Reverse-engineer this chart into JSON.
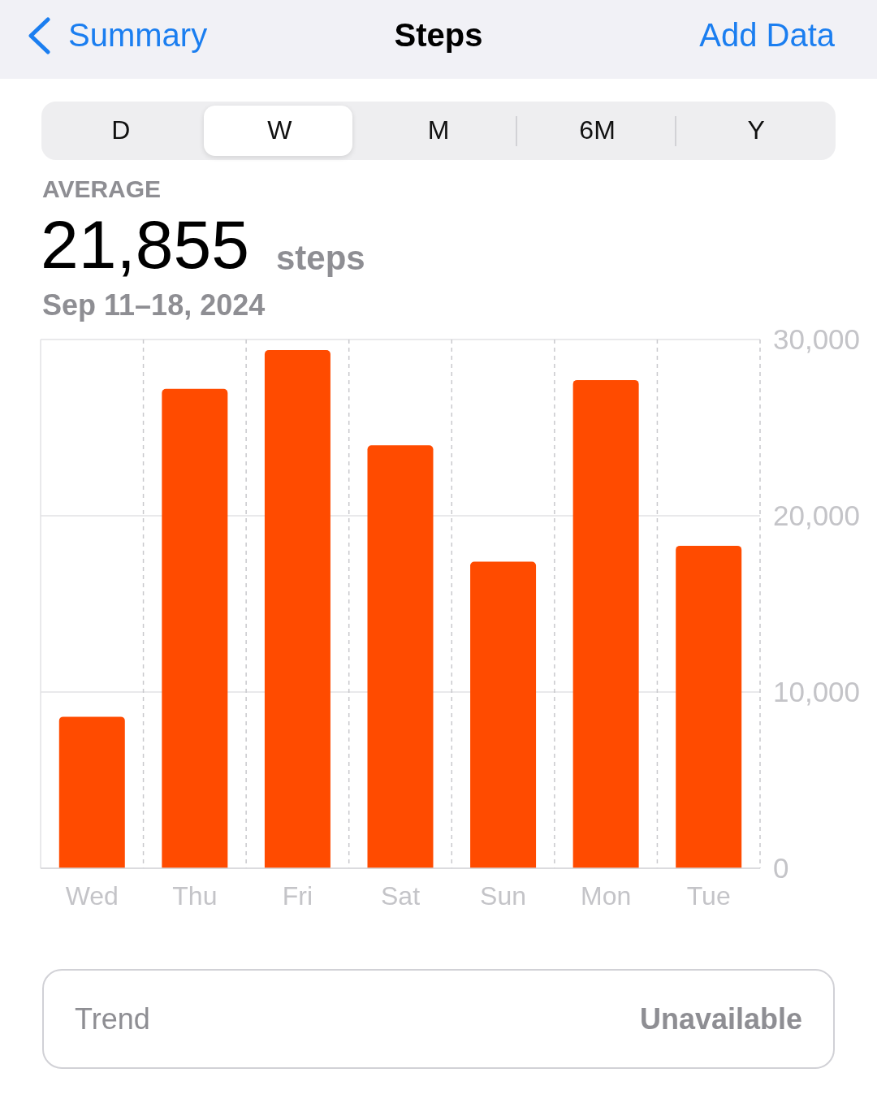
{
  "chart_data": {
    "type": "bar",
    "title": "Steps",
    "subtitle": "Sep 11–18, 2024",
    "categories": [
      "Wed",
      "Thu",
      "Fri",
      "Sat",
      "Sun",
      "Mon",
      "Tue"
    ],
    "values": [
      8600,
      27200,
      29400,
      24000,
      17400,
      27700,
      18300
    ],
    "color": "#ff4b00",
    "ylim": [
      0,
      30000
    ],
    "yticks": [
      0,
      {
        "value": 10000,
        "label": "10,000"
      },
      {
        "value": 20000,
        "label": "20,000"
      },
      {
        "value": 30000,
        "label": "30,000"
      }
    ],
    "grid": true,
    "annotations": [
      "Summary",
      "Add Data",
      "D",
      "W",
      "M",
      "6M",
      "Y",
      "AVERAGE",
      "21,855",
      "steps",
      "Trend",
      "Unavailable"
    ]
  }
}
